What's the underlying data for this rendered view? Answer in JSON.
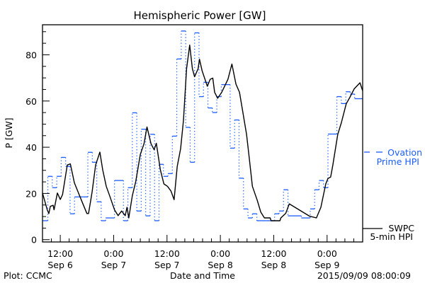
{
  "chart_data": {
    "type": "line",
    "title": "Hemispheric Power [GW]",
    "xlabel": "Date and Time",
    "ylabel": "P [GW]",
    "x_units": "hours since 2015-09-06 08:00",
    "xlim": [
      0,
      72
    ],
    "ylim": [
      -1,
      93
    ],
    "y_ticks": [
      0,
      20,
      40,
      60,
      80
    ],
    "y_tick_labels": [
      "0",
      "20",
      "40",
      "60",
      "80"
    ],
    "x_ticks": [
      {
        "hour": 4,
        "time": "12:00",
        "date": "Sep 6"
      },
      {
        "hour": 16,
        "time": "0:00",
        "date": "Sep 7"
      },
      {
        "hour": 28,
        "time": "12:00",
        "date": "Sep 7"
      },
      {
        "hour": 40,
        "time": "0:00",
        "date": "Sep 8"
      },
      {
        "hour": 52,
        "time": "12:00",
        "date": "Sep 8"
      },
      {
        "hour": 64,
        "time": "0:00",
        "date": "Sep 9"
      }
    ],
    "legend": {
      "placement": "right",
      "ovation_line1": "Ovation",
      "ovation_line2": "Prime HPI",
      "swpc_line1": "SWPC",
      "swpc_line2": "5-min HPI"
    },
    "series": [
      {
        "name": "Ovation Prime HPI",
        "style": "step",
        "color": "#1a5cff",
        "step_offset_hours": 0.2,
        "values": [
          8.2,
          27.4,
          22.5,
          27.4,
          35.6,
          31.7,
          11.2,
          18.5,
          18.5,
          18.5,
          37.8,
          33.5,
          16.4,
          8.2,
          9.4,
          9.4,
          25.6,
          25.6,
          8.2,
          22.5,
          54.9,
          12.4,
          47.8,
          10.3,
          45.6,
          8.2,
          32.6,
          27.4,
          28.6,
          44.8,
          78.2,
          90.3,
          48.6,
          33.5,
          89.5,
          61.9,
          68.1,
          57.0,
          55.0,
          61.9,
          67.1,
          67.1,
          39.6,
          51.8,
          26.6,
          13.3,
          9.4,
          11.2,
          8.2,
          8.2,
          8.2,
          8.2,
          11.2,
          12.4,
          21.6,
          10.3,
          10.3,
          10.3,
          9.4,
          9.4,
          13.3,
          21.6,
          25.6,
          22.5,
          45.7,
          45.7,
          61.9,
          58.9,
          64.0,
          63.0,
          61.0,
          61.0
        ]
      },
      {
        "name": "SWPC 5-min HPI",
        "style": "line",
        "color": "#000000",
        "x": [
          0,
          1.06,
          1.43,
          1.75,
          2.39,
          2.6,
          3.35,
          4.0,
          4.51,
          5.57,
          6.26,
          7.17,
          8.23,
          9.0,
          9.98,
          10.35,
          11.15,
          11.95,
          12.9,
          13.54,
          14.34,
          15.1,
          16.2,
          17.0,
          17.8,
          18.6,
          19.0,
          19.4,
          20.2,
          20.97,
          22.0,
          22.83,
          23.5,
          24.4,
          25.1,
          25.6,
          26.5,
          27.3,
          28.1,
          28.9,
          29.6,
          30.3,
          31.06,
          31.7,
          32.4,
          33.1,
          33.7,
          34.2,
          35.0,
          35.3,
          35.9,
          37.07,
          37.7,
          38.3,
          38.7,
          39.4,
          40.3,
          41.7,
          42.6,
          43.5,
          44.3,
          45.1,
          45.9,
          46.5,
          47.2,
          48.3,
          49.1,
          49.9,
          51.2,
          51.4,
          53.4,
          53.6,
          54.7,
          55.5,
          60.0,
          61.6,
          62.6,
          63.7,
          64.2,
          64.8,
          65.3,
          66.4,
          67.2,
          68.3,
          69.0,
          70.1,
          71.4,
          72.0
        ],
        "values": [
          20.2,
          12.9,
          11.3,
          14.4,
          14.9,
          12.9,
          20.2,
          17.4,
          19.5,
          32.3,
          32.8,
          24.6,
          19.5,
          15.9,
          11.3,
          11.3,
          20.6,
          32.3,
          37.9,
          30.2,
          23.1,
          19.0,
          12.9,
          10.4,
          12.4,
          10.4,
          14.0,
          9.4,
          19.0,
          25.1,
          36.9,
          41.5,
          48.8,
          41.5,
          38.9,
          41.7,
          30.2,
          24.1,
          23.1,
          21.0,
          17.3,
          31.7,
          39.4,
          51.6,
          74.0,
          84.2,
          74.0,
          70.5,
          74.0,
          78.1,
          73.0,
          66.4,
          69.4,
          69.9,
          63.8,
          61.2,
          63.8,
          69.4,
          76.0,
          67.3,
          63.8,
          54.7,
          45.5,
          35.3,
          23.1,
          17.0,
          11.9,
          9.4,
          9.4,
          8.2,
          8.2,
          9.4,
          11.4,
          15.5,
          10.2,
          9.4,
          14.0,
          24.1,
          26.5,
          27.1,
          32.3,
          45.5,
          50.6,
          58.8,
          61.2,
          65.3,
          67.9,
          64.4
        ]
      }
    ]
  },
  "footer": {
    "plot_credit": "Plot: CCMC",
    "timestamp": "2015/09/09 08:00:09"
  }
}
